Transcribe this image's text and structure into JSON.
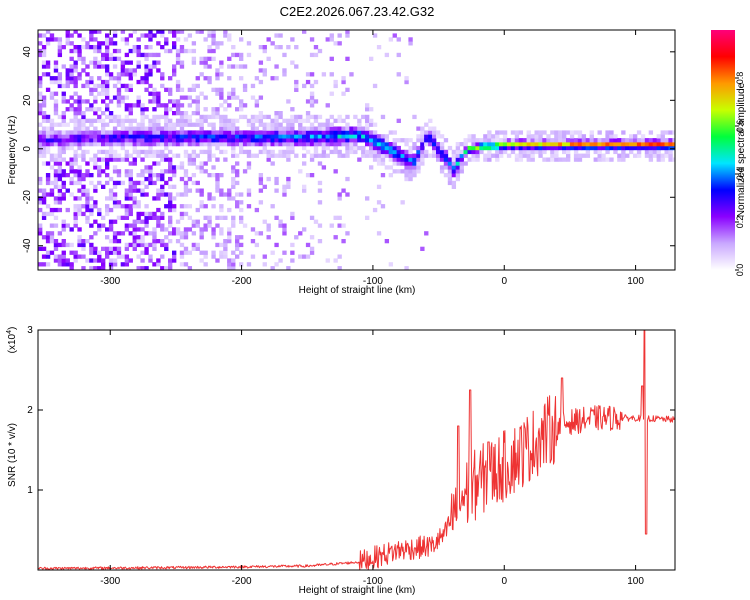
{
  "title": "C2E2.2026.067.23.42.G32",
  "chart_data": [
    {
      "type": "heatmap",
      "name": "spectrogram",
      "xlabel": "Height of straight line (km)",
      "ylabel": "Frequency (Hz)",
      "xlim": [
        -355,
        130
      ],
      "ylim": [
        -50,
        49
      ],
      "xticks": [
        -300,
        -200,
        -100,
        0,
        100
      ],
      "xtick_labels": [
        "-300",
        "-200",
        "-100",
        "0",
        "100"
      ],
      "yticks": [
        -40,
        -20,
        0,
        20,
        40
      ],
      "ytick_labels": [
        "-40",
        "-20",
        "0",
        "20",
        "40"
      ],
      "colorbar": {
        "label": "Normalized spectral amplitude",
        "range": [
          0,
          1
        ],
        "ticks": [
          0.0,
          0.2,
          0.4,
          0.6,
          0.8
        ],
        "tick_labels": [
          "0.0",
          "0.2",
          "0.4",
          "0.6",
          "0.8"
        ],
        "colors": [
          "#ffffff",
          "#c9a8ff",
          "#8a00ff",
          "#0000ff",
          "#00e5ff",
          "#00ff3c",
          "#c8ff00",
          "#ff9900",
          "#ff0000",
          "#ff007a"
        ]
      },
      "ridge": [
        {
          "x": -350,
          "f": 3,
          "a": 0.25
        },
        {
          "x": -300,
          "f": 4,
          "a": 0.3
        },
        {
          "x": -250,
          "f": 4,
          "a": 0.33
        },
        {
          "x": -200,
          "f": 4,
          "a": 0.36
        },
        {
          "x": -150,
          "f": 4,
          "a": 0.4
        },
        {
          "x": -110,
          "f": 5,
          "a": 0.45
        },
        {
          "x": -95,
          "f": 1,
          "a": 0.45
        },
        {
          "x": -80,
          "f": -4,
          "a": 0.42
        },
        {
          "x": -70,
          "f": -6,
          "a": 0.4
        },
        {
          "x": -60,
          "f": 5,
          "a": 0.3
        },
        {
          "x": -50,
          "f": -2,
          "a": 0.35
        },
        {
          "x": -40,
          "f": -9,
          "a": 0.38
        },
        {
          "x": -30,
          "f": -1,
          "a": 0.6
        },
        {
          "x": -20,
          "f": 0,
          "a": 0.7
        },
        {
          "x": 0,
          "f": 1,
          "a": 0.75
        },
        {
          "x": 30,
          "f": 1,
          "a": 0.8
        },
        {
          "x": 60,
          "f": 1,
          "a": 0.85
        },
        {
          "x": 100,
          "f": 1,
          "a": 0.9
        },
        {
          "x": 130,
          "f": 1,
          "a": 0.9
        }
      ]
    },
    {
      "type": "line",
      "name": "snr",
      "xlabel": "Height of straight line (km)",
      "ylabel": "SNR (10 * v/v)",
      "y_multiplier": "(x10^4)",
      "y_multiplier_base": "(x10",
      "y_multiplier_exp": "4",
      "y_multiplier_close": ")",
      "color": "#ee3333",
      "xlim": [
        -355,
        130
      ],
      "ylim": [
        0,
        3
      ],
      "xticks": [
        -300,
        -200,
        -100,
        0,
        100
      ],
      "xtick_labels": [
        "-300",
        "-200",
        "-100",
        "0",
        "100"
      ],
      "yticks": [
        1,
        2,
        3
      ],
      "ytick_labels": [
        "1",
        "2",
        "3"
      ],
      "envelope": [
        {
          "x": -355,
          "y": 0.02
        },
        {
          "x": -250,
          "y": 0.03
        },
        {
          "x": -150,
          "y": 0.05
        },
        {
          "x": -110,
          "y": 0.1
        },
        {
          "x": -80,
          "y": 0.25
        },
        {
          "x": -55,
          "y": 0.3
        },
        {
          "x": -45,
          "y": 0.45
        },
        {
          "x": -35,
          "y": 0.85
        },
        {
          "x": -20,
          "y": 1.1
        },
        {
          "x": 0,
          "y": 1.3
        },
        {
          "x": 20,
          "y": 1.55
        },
        {
          "x": 35,
          "y": 1.75
        },
        {
          "x": 50,
          "y": 1.85
        },
        {
          "x": 70,
          "y": 1.9
        },
        {
          "x": 100,
          "y": 1.9
        },
        {
          "x": 130,
          "y": 1.88
        }
      ],
      "spikes": [
        {
          "x": -35,
          "y": 1.8
        },
        {
          "x": -26,
          "y": 2.25
        },
        {
          "x": -12,
          "y": 1.6
        },
        {
          "x": 44,
          "y": 2.4
        },
        {
          "x": 105,
          "y": 2.3
        },
        {
          "x": 107,
          "y": 3.0
        },
        {
          "x": 108,
          "y": 0.45
        }
      ]
    }
  ]
}
